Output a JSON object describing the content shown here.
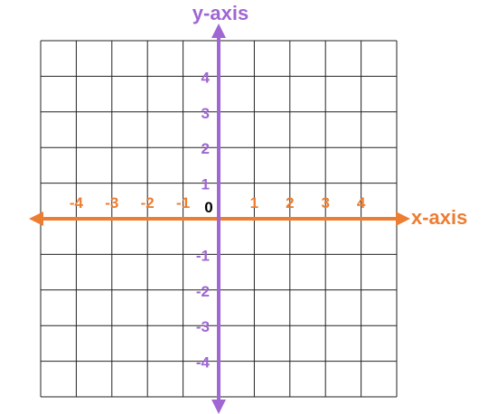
{
  "colors": {
    "x_axis": "#ED7D31",
    "y_axis": "#A066D3",
    "grid": "#222222",
    "origin": "#000000"
  },
  "x_axis": {
    "label": "x-axis",
    "ticks": [
      "-4",
      "-3",
      "-2",
      "-1",
      "1",
      "2",
      "3",
      "4"
    ]
  },
  "y_axis": {
    "label": "y-axis",
    "ticks": [
      "4",
      "3",
      "2",
      "1",
      "-1",
      "-2",
      "-3",
      "-4"
    ]
  },
  "origin": {
    "label": "0"
  },
  "grid": {
    "min": -5,
    "max": 5
  }
}
